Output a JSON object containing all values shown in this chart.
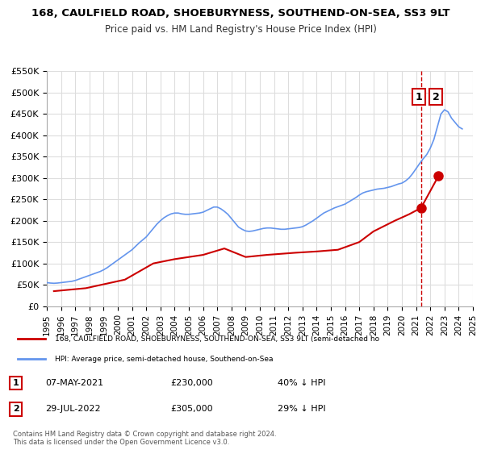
{
  "title": "168, CAULFIELD ROAD, SHOEBURYNESS, SOUTHEND-ON-SEA, SS3 9LT",
  "subtitle": "Price paid vs. HM Land Registry's House Price Index (HPI)",
  "xlim": [
    1995,
    2025
  ],
  "ylim": [
    0,
    550000
  ],
  "yticks": [
    0,
    50000,
    100000,
    150000,
    200000,
    250000,
    300000,
    350000,
    400000,
    450000,
    500000,
    550000
  ],
  "ytick_labels": [
    "£0",
    "£50K",
    "£100K",
    "£150K",
    "£200K",
    "£250K",
    "£300K",
    "£350K",
    "£400K",
    "£450K",
    "£500K",
    "£550K"
  ],
  "xticks": [
    1995,
    1996,
    1997,
    1998,
    1999,
    2000,
    2001,
    2002,
    2003,
    2004,
    2005,
    2006,
    2007,
    2008,
    2009,
    2010,
    2011,
    2012,
    2013,
    2014,
    2015,
    2016,
    2017,
    2018,
    2019,
    2020,
    2021,
    2022,
    2023,
    2024,
    2025
  ],
  "hpi_color": "#6495ED",
  "price_color": "#cc0000",
  "marker_color": "#cc0000",
  "vline_color": "#cc0000",
  "grid_color": "#dddddd",
  "bg_color": "#ffffff",
  "legend_label_red": "168, CAULFIELD ROAD, SHOEBURYNESS, SOUTHEND-ON-SEA, SS3 9LT (semi-detached ho",
  "legend_label_blue": "HPI: Average price, semi-detached house, Southend-on-Sea",
  "annotation_1_date": "07-MAY-2021",
  "annotation_1_price": "£230,000",
  "annotation_1_hpi": "40% ↓ HPI",
  "annotation_2_date": "29-JUL-2022",
  "annotation_2_price": "£305,000",
  "annotation_2_hpi": "29% ↓ HPI",
  "copyright_text": "Contains HM Land Registry data © Crown copyright and database right 2024.\nThis data is licensed under the Open Government Licence v3.0.",
  "sale1_x": 2021.35,
  "sale1_y": 230000,
  "sale2_x": 2022.58,
  "sale2_y": 305000,
  "vline_x": 2021.35,
  "hpi_x": [
    1995.0,
    1995.25,
    1995.5,
    1995.75,
    1996.0,
    1996.25,
    1996.5,
    1996.75,
    1997.0,
    1997.25,
    1997.5,
    1997.75,
    1998.0,
    1998.25,
    1998.5,
    1998.75,
    1999.0,
    1999.25,
    1999.5,
    1999.75,
    2000.0,
    2000.25,
    2000.5,
    2000.75,
    2001.0,
    2001.25,
    2001.5,
    2001.75,
    2002.0,
    2002.25,
    2002.5,
    2002.75,
    2003.0,
    2003.25,
    2003.5,
    2003.75,
    2004.0,
    2004.25,
    2004.5,
    2004.75,
    2005.0,
    2005.25,
    2005.5,
    2005.75,
    2006.0,
    2006.25,
    2006.5,
    2006.75,
    2007.0,
    2007.25,
    2007.5,
    2007.75,
    2008.0,
    2008.25,
    2008.5,
    2008.75,
    2009.0,
    2009.25,
    2009.5,
    2009.75,
    2010.0,
    2010.25,
    2010.5,
    2010.75,
    2011.0,
    2011.25,
    2011.5,
    2011.75,
    2012.0,
    2012.25,
    2012.5,
    2012.75,
    2013.0,
    2013.25,
    2013.5,
    2013.75,
    2014.0,
    2014.25,
    2014.5,
    2014.75,
    2015.0,
    2015.25,
    2015.5,
    2015.75,
    2016.0,
    2016.25,
    2016.5,
    2016.75,
    2017.0,
    2017.25,
    2017.5,
    2017.75,
    2018.0,
    2018.25,
    2018.5,
    2018.75,
    2019.0,
    2019.25,
    2019.5,
    2019.75,
    2020.0,
    2020.25,
    2020.5,
    2020.75,
    2021.0,
    2021.25,
    2021.5,
    2021.75,
    2022.0,
    2022.25,
    2022.5,
    2022.75,
    2023.0,
    2023.25,
    2023.5,
    2023.75,
    2024.0,
    2024.25
  ],
  "hpi_y": [
    55000,
    54000,
    53500,
    54000,
    55000,
    56000,
    57000,
    58000,
    60000,
    63000,
    66000,
    69000,
    72000,
    75000,
    78000,
    81000,
    85000,
    90000,
    96000,
    102000,
    108000,
    114000,
    120000,
    126000,
    132000,
    140000,
    148000,
    155000,
    162000,
    172000,
    182000,
    192000,
    200000,
    207000,
    212000,
    216000,
    218000,
    218000,
    216000,
    215000,
    215000,
    216000,
    217000,
    218000,
    220000,
    224000,
    228000,
    232000,
    232000,
    228000,
    222000,
    215000,
    205000,
    195000,
    185000,
    180000,
    176000,
    175000,
    176000,
    178000,
    180000,
    182000,
    183000,
    183000,
    182000,
    181000,
    180000,
    180000,
    181000,
    182000,
    183000,
    184000,
    186000,
    190000,
    195000,
    200000,
    206000,
    212000,
    218000,
    222000,
    226000,
    230000,
    233000,
    236000,
    239000,
    244000,
    249000,
    254000,
    260000,
    265000,
    268000,
    270000,
    272000,
    274000,
    275000,
    276000,
    278000,
    280000,
    283000,
    286000,
    288000,
    293000,
    300000,
    310000,
    322000,
    334000,
    345000,
    355000,
    370000,
    390000,
    420000,
    450000,
    460000,
    455000,
    440000,
    430000,
    420000,
    415000
  ],
  "price_x": [
    1995.5,
    1997.75,
    2000.5,
    2002.5,
    2004.0,
    2006.0,
    2007.5,
    2009.0,
    2010.5,
    2012.5,
    2014.0,
    2015.5,
    2017.0,
    2018.0,
    2019.5,
    2020.5,
    2021.35,
    2022.58
  ],
  "price_y": [
    35000,
    42000,
    62000,
    100000,
    110000,
    120000,
    135000,
    115000,
    120000,
    125000,
    128000,
    132000,
    150000,
    175000,
    200000,
    215000,
    230000,
    305000
  ]
}
